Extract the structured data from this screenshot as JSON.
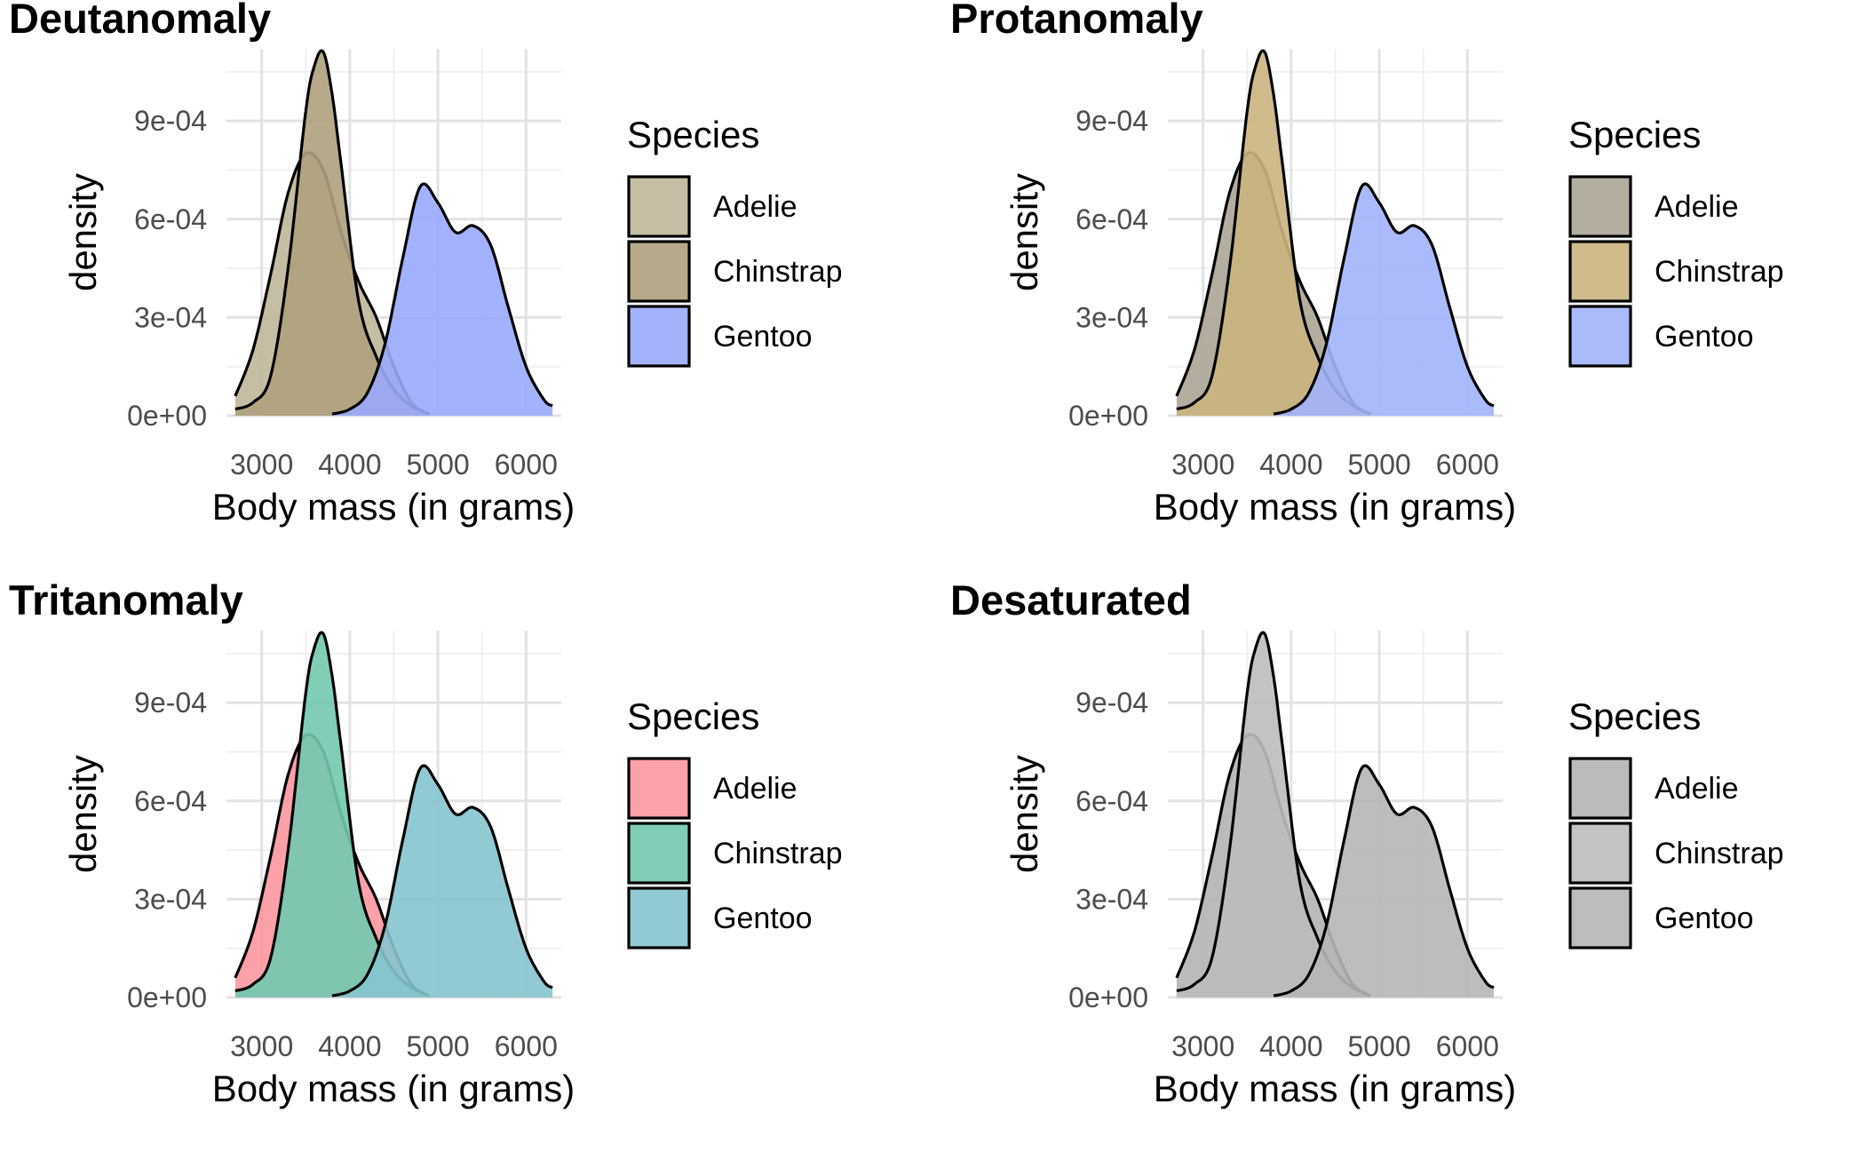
{
  "chart_data": [
    {
      "type": "area",
      "title": "Deutanomaly",
      "xlabel": "Body mass (in grams)",
      "ylabel": "density",
      "xlim": [
        2600,
        6400
      ],
      "ylim": [
        0,
        0.00112
      ],
      "x_ticks": [
        3000,
        4000,
        5000,
        6000
      ],
      "x_tick_labels": [
        "3000",
        "4000",
        "5000",
        "6000"
      ],
      "y_ticks": [
        0,
        0.0003,
        0.0006,
        0.0009
      ],
      "y_tick_labels": [
        "0e+00",
        "3e-04",
        "6e-04",
        "9e-04"
      ],
      "grid": true,
      "legend": {
        "title": "Species",
        "placement": "right"
      },
      "series": [
        {
          "name": "Adelie",
          "color": "#bfb79a",
          "x": [
            2700,
            2900,
            3100,
            3300,
            3500,
            3700,
            3900,
            4100,
            4300,
            4500,
            4700,
            4900
          ],
          "y": [
            6e-05,
            0.0002,
            0.00043,
            0.00068,
            0.0008,
            0.00075,
            0.00056,
            0.00041,
            0.0003,
            0.00015,
            4e-05,
            5e-06
          ]
        },
        {
          "name": "Chinstrap",
          "color": "#afa17e",
          "x": [
            2700,
            2900,
            3100,
            3300,
            3500,
            3600,
            3700,
            3800,
            3900,
            4100,
            4300,
            4500,
            4700,
            4900
          ],
          "y": [
            2e-05,
            4e-05,
            0.00012,
            0.00045,
            0.00093,
            0.00107,
            0.00111,
            0.00098,
            0.00077,
            0.00035,
            0.00018,
            8e-05,
            3e-05,
            5e-06
          ]
        },
        {
          "name": "Gentoo",
          "color": "#9aa9fc",
          "x": [
            3800,
            4000,
            4200,
            4400,
            4600,
            4800,
            5000,
            5200,
            5400,
            5600,
            5800,
            6000,
            6200,
            6300
          ],
          "y": [
            5e-06,
            2e-05,
            7e-05,
            0.00022,
            0.00048,
            0.0007,
            0.00065,
            0.00056,
            0.00058,
            0.00052,
            0.00033,
            0.00015,
            5e-05,
            3e-05
          ]
        }
      ]
    },
    {
      "type": "area",
      "title": "Protanomaly",
      "xlabel": "Body mass (in grams)",
      "ylabel": "density",
      "xlim": [
        2600,
        6400
      ],
      "ylim": [
        0,
        0.00112
      ],
      "x_ticks": [
        3000,
        4000,
        5000,
        6000
      ],
      "x_tick_labels": [
        "3000",
        "4000",
        "5000",
        "6000"
      ],
      "y_ticks": [
        0,
        0.0003,
        0.0006,
        0.0009
      ],
      "y_tick_labels": [
        "0e+00",
        "3e-04",
        "6e-04",
        "9e-04"
      ],
      "grid": true,
      "legend": {
        "title": "Species",
        "placement": "right"
      },
      "series": [
        {
          "name": "Adelie",
          "color": "#aca597",
          "x": [
            2700,
            2900,
            3100,
            3300,
            3500,
            3700,
            3900,
            4100,
            4300,
            4500,
            4700,
            4900
          ],
          "y": [
            6e-05,
            0.0002,
            0.00043,
            0.00068,
            0.0008,
            0.00075,
            0.00056,
            0.00041,
            0.0003,
            0.00015,
            4e-05,
            5e-06
          ]
        },
        {
          "name": "Chinstrap",
          "color": "#cab47f",
          "x": [
            2700,
            2900,
            3100,
            3300,
            3500,
            3600,
            3700,
            3800,
            3900,
            4100,
            4300,
            4500,
            4700,
            4900
          ],
          "y": [
            2e-05,
            4e-05,
            0.00012,
            0.00045,
            0.00093,
            0.00107,
            0.00111,
            0.00098,
            0.00077,
            0.00035,
            0.00018,
            8e-05,
            3e-05,
            5e-06
          ]
        },
        {
          "name": "Gentoo",
          "color": "#a2b3fb",
          "x": [
            3800,
            4000,
            4200,
            4400,
            4600,
            4800,
            5000,
            5200,
            5400,
            5600,
            5800,
            6000,
            6200,
            6300
          ],
          "y": [
            5e-06,
            2e-05,
            7e-05,
            0.00022,
            0.00048,
            0.0007,
            0.00065,
            0.00056,
            0.00058,
            0.00052,
            0.00033,
            0.00015,
            5e-05,
            3e-05
          ]
        }
      ]
    },
    {
      "type": "area",
      "title": "Tritanomaly",
      "xlabel": "Body mass (in grams)",
      "ylabel": "density",
      "xlim": [
        2600,
        6400
      ],
      "ylim": [
        0,
        0.00112
      ],
      "x_ticks": [
        3000,
        4000,
        5000,
        6000
      ],
      "x_tick_labels": [
        "3000",
        "4000",
        "5000",
        "6000"
      ],
      "y_ticks": [
        0,
        0.0003,
        0.0006,
        0.0009
      ],
      "y_tick_labels": [
        "0e+00",
        "3e-04",
        "6e-04",
        "9e-04"
      ],
      "grid": true,
      "legend": {
        "title": "Species",
        "placement": "right"
      },
      "series": [
        {
          "name": "Adelie",
          "color": "#fc96a0",
          "x": [
            2700,
            2900,
            3100,
            3300,
            3500,
            3700,
            3900,
            4100,
            4300,
            4500,
            4700,
            4900
          ],
          "y": [
            6e-05,
            0.0002,
            0.00043,
            0.00068,
            0.0008,
            0.00075,
            0.00056,
            0.00041,
            0.0003,
            0.00015,
            4e-05,
            5e-06
          ]
        },
        {
          "name": "Chinstrap",
          "color": "#72c9b0",
          "x": [
            2700,
            2900,
            3100,
            3300,
            3500,
            3600,
            3700,
            3800,
            3900,
            4100,
            4300,
            4500,
            4700,
            4900
          ],
          "y": [
            2e-05,
            4e-05,
            0.00012,
            0.00045,
            0.00093,
            0.00107,
            0.00111,
            0.00098,
            0.00077,
            0.00035,
            0.00018,
            8e-05,
            3e-05,
            5e-06
          ]
        },
        {
          "name": "Gentoo",
          "color": "#86c4ce",
          "x": [
            3800,
            4000,
            4200,
            4400,
            4600,
            4800,
            5000,
            5200,
            5400,
            5600,
            5800,
            6000,
            6200,
            6300
          ],
          "y": [
            5e-06,
            2e-05,
            7e-05,
            0.00022,
            0.00048,
            0.0007,
            0.00065,
            0.00056,
            0.00058,
            0.00052,
            0.00033,
            0.00015,
            5e-05,
            3e-05
          ]
        }
      ]
    },
    {
      "type": "area",
      "title": "Desaturated",
      "xlabel": "Body mass (in grams)",
      "ylabel": "density",
      "xlim": [
        2600,
        6400
      ],
      "ylim": [
        0,
        0.00112
      ],
      "x_ticks": [
        3000,
        4000,
        5000,
        6000
      ],
      "x_tick_labels": [
        "3000",
        "4000",
        "5000",
        "6000"
      ],
      "y_ticks": [
        0,
        0.0003,
        0.0006,
        0.0009
      ],
      "y_tick_labels": [
        "0e+00",
        "3e-04",
        "6e-04",
        "9e-04"
      ],
      "grid": true,
      "legend": {
        "title": "Species",
        "placement": "right"
      },
      "series": [
        {
          "name": "Adelie",
          "color": "#b4b4b4",
          "x": [
            2700,
            2900,
            3100,
            3300,
            3500,
            3700,
            3900,
            4100,
            4300,
            4500,
            4700,
            4900
          ],
          "y": [
            6e-05,
            0.0002,
            0.00043,
            0.00068,
            0.0008,
            0.00075,
            0.00056,
            0.00041,
            0.0003,
            0.00015,
            4e-05,
            5e-06
          ]
        },
        {
          "name": "Chinstrap",
          "color": "#bcbcbc",
          "x": [
            2700,
            2900,
            3100,
            3300,
            3500,
            3600,
            3700,
            3800,
            3900,
            4100,
            4300,
            4500,
            4700,
            4900
          ],
          "y": [
            2e-05,
            4e-05,
            0.00012,
            0.00045,
            0.00093,
            0.00107,
            0.00111,
            0.00098,
            0.00077,
            0.00035,
            0.00018,
            8e-05,
            3e-05,
            5e-06
          ]
        },
        {
          "name": "Gentoo",
          "color": "#b6b6b6",
          "x": [
            3800,
            4000,
            4200,
            4400,
            4600,
            4800,
            5000,
            5200,
            5400,
            5600,
            5800,
            6000,
            6200,
            6300
          ],
          "y": [
            5e-06,
            2e-05,
            7e-05,
            0.00022,
            0.00048,
            0.0007,
            0.00065,
            0.00056,
            0.00058,
            0.00052,
            0.00033,
            0.00015,
            5e-05,
            3e-05
          ]
        }
      ]
    }
  ]
}
